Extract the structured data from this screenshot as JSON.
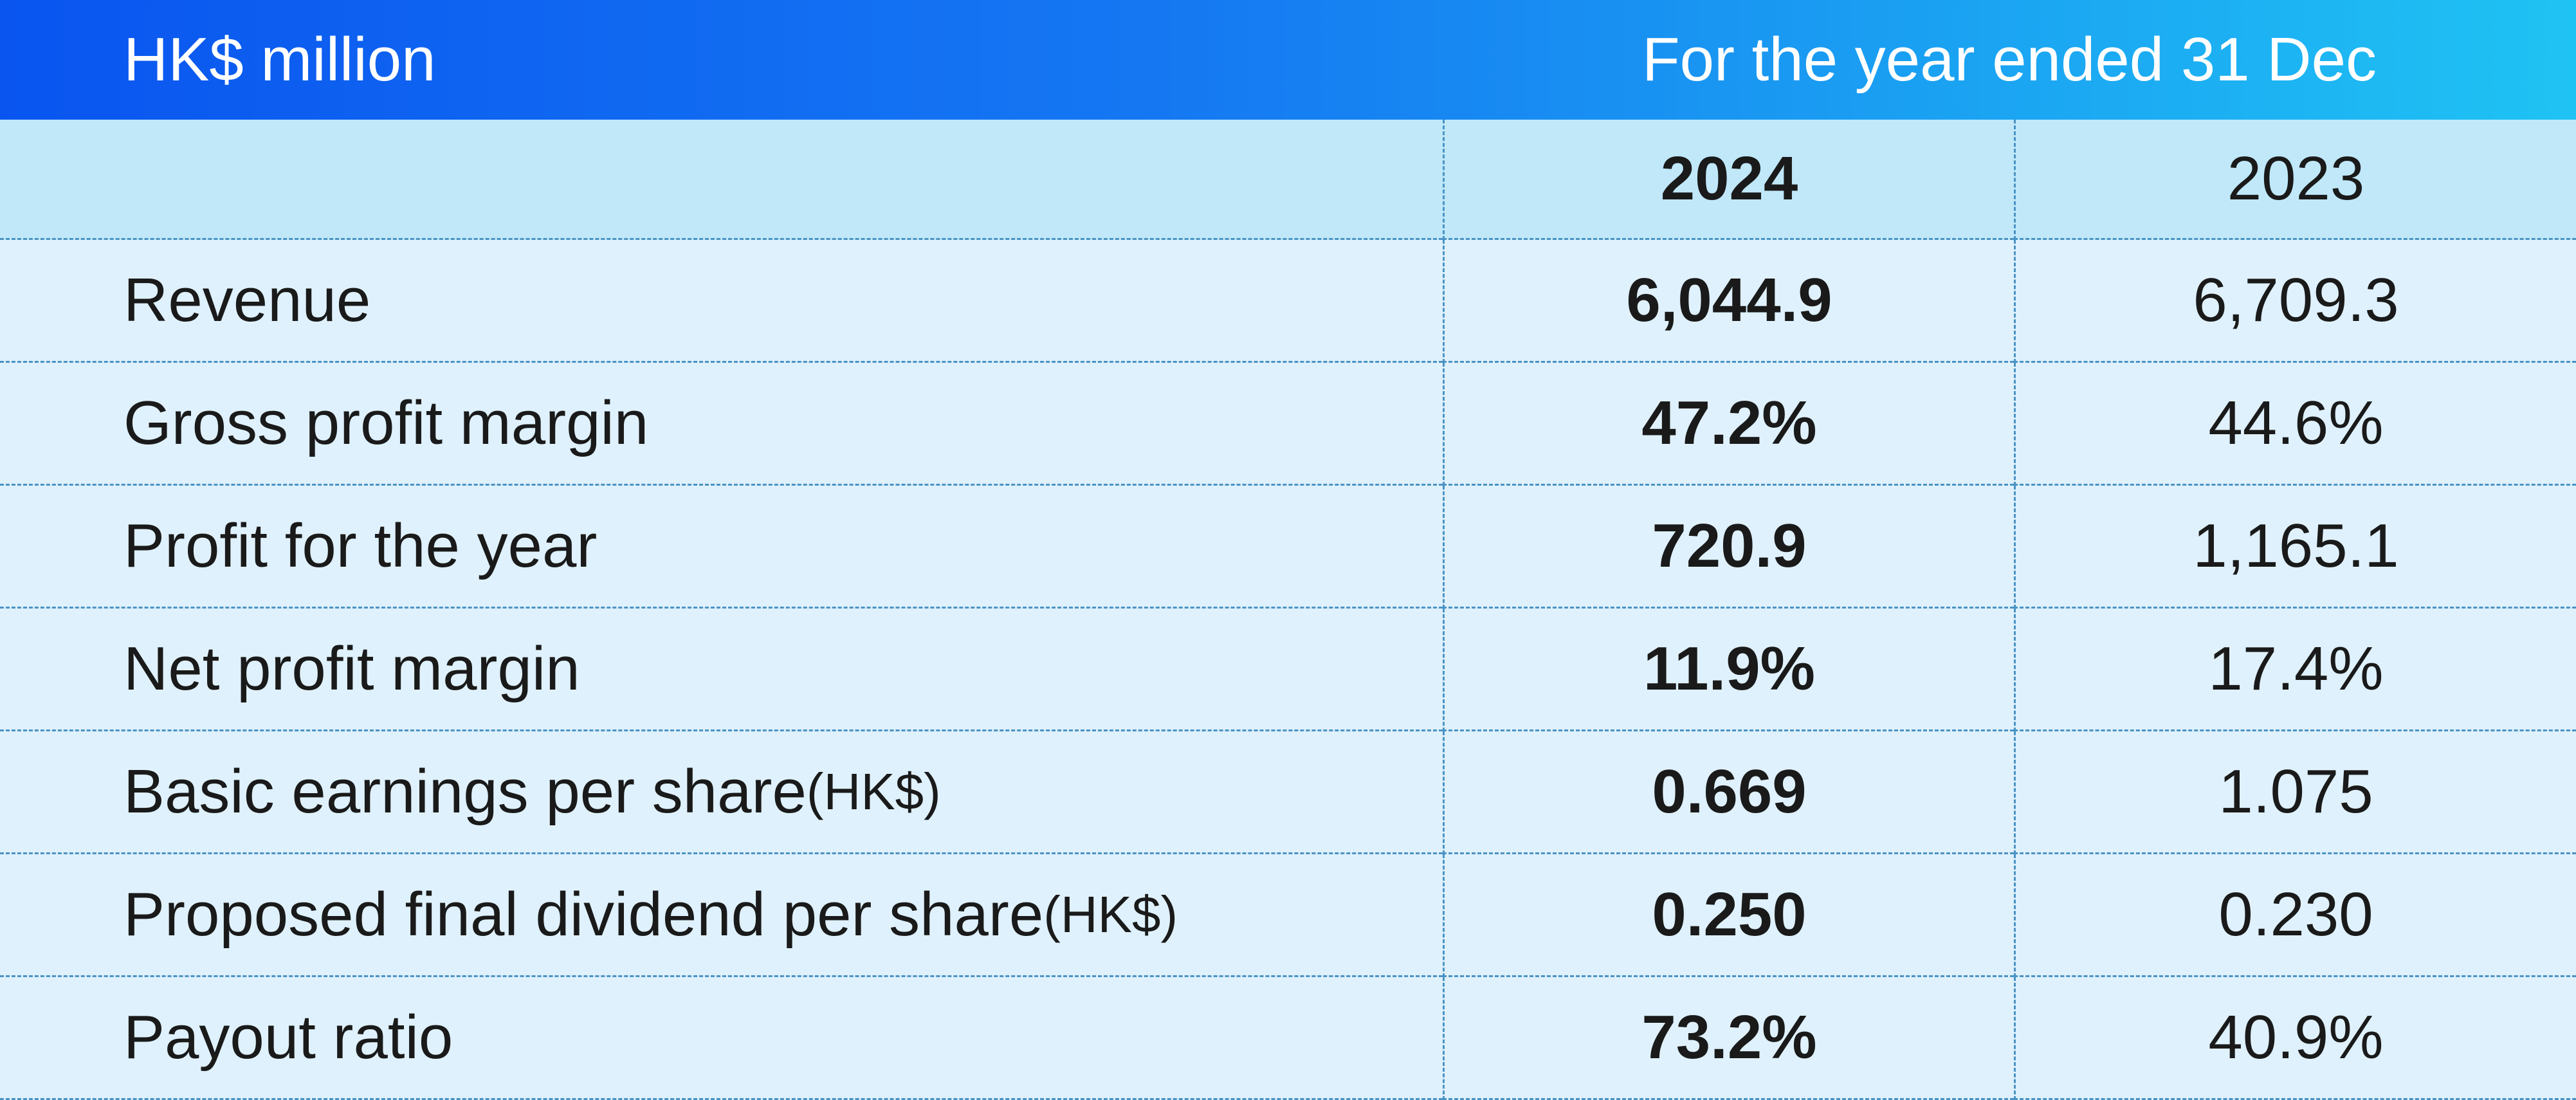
{
  "header": {
    "unit": "HK$ million",
    "period": "For the year ended 31 Dec"
  },
  "table": {
    "columns": [
      "2024",
      "2023"
    ],
    "rows": [
      {
        "label": "Revenue",
        "values": [
          "6,044.9",
          "6,709.3"
        ]
      },
      {
        "label": "Gross profit margin",
        "values": [
          "47.2%",
          "44.6%"
        ]
      },
      {
        "label": "Profit for the year",
        "values": [
          "720.9",
          "1,165.1"
        ]
      },
      {
        "label": "Net profit margin",
        "values": [
          "11.9%",
          "17.4%"
        ]
      },
      {
        "label": "Basic earnings per share ",
        "unit": "(HK$)",
        "values": [
          "0.669",
          "1.075"
        ]
      },
      {
        "label": "Proposed final dividend per share",
        "unit": "(HK$)",
        "values": [
          "0.250",
          "0.230"
        ]
      },
      {
        "label": "Payout ratio",
        "values": [
          "73.2%",
          "40.9%"
        ]
      }
    ]
  }
}
